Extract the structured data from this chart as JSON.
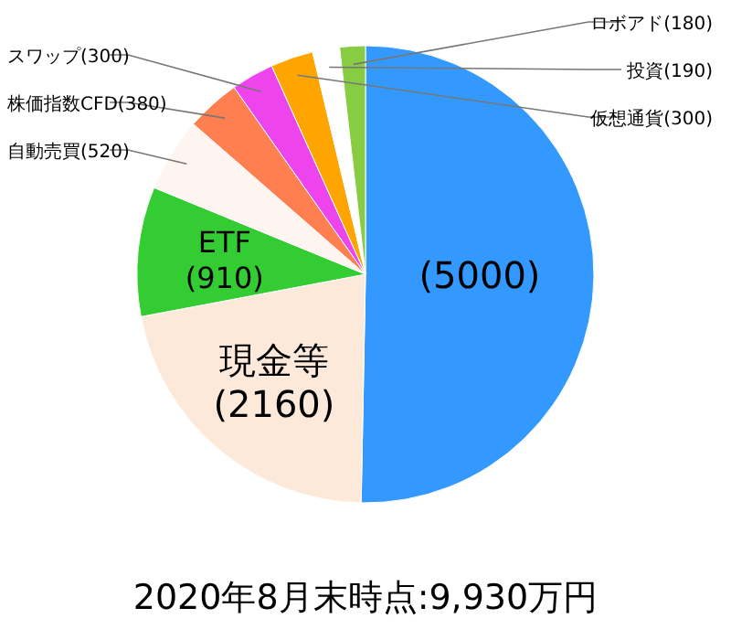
{
  "chart_data": {
    "type": "pie",
    "categories": [
      null,
      "現金等",
      "ETF",
      "自動売買",
      "株価指数CFD",
      "スワップ",
      "仮想通貨",
      "投資",
      "ロボアド"
    ],
    "values": [
      5000,
      2160,
      910,
      520,
      380,
      300,
      300,
      190,
      180
    ],
    "colors": [
      "#3399ff",
      "#fde9d9",
      "#33cc33",
      "#fff5f0",
      "#ff7f50",
      "#ee44ee",
      "#ffa500",
      "#ffffff",
      "#88cc44"
    ],
    "value_labels": [
      "(5000)",
      "(2160)",
      "(910)",
      "(520)",
      "(380)",
      "(300)",
      "(300)",
      "(190)",
      "(180)"
    ],
    "annotations": [
      "2020年8月末時点:9,930万円"
    ]
  }
}
